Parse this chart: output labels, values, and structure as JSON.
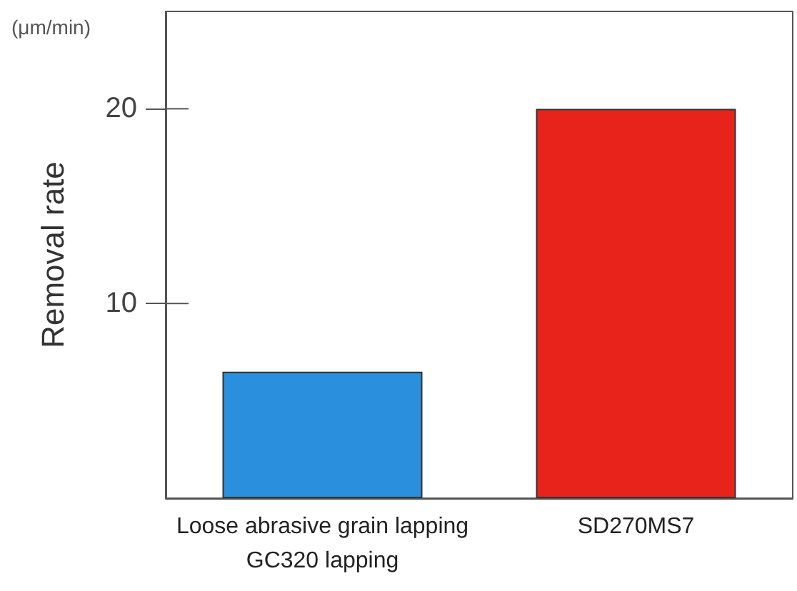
{
  "chart_data": {
    "type": "bar",
    "ylabel": "Removal rate",
    "annotations": [
      "(μm/min)"
    ],
    "categories": [
      "Loose abrasive grain lapping\nGC320 lapping",
      "SD270MS7"
    ],
    "values": [
      6.5,
      20
    ],
    "colors": [
      "#2a8fdc",
      "#e8231c"
    ],
    "ylim": [
      0,
      25
    ],
    "yticks": [
      10,
      20
    ]
  }
}
